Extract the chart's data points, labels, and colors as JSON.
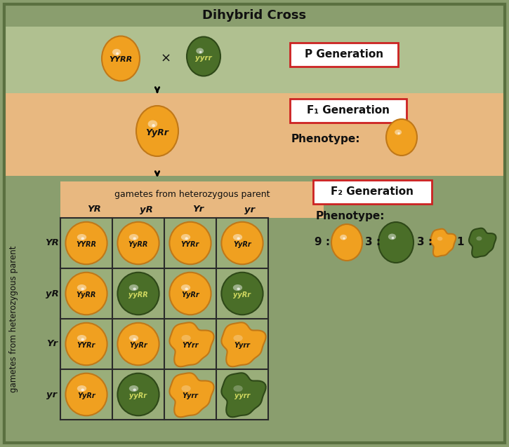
{
  "title": "Dihybrid Cross",
  "title_bg": "#8a9e6e",
  "title_border": "#5a7040",
  "p_gen_bg": "#b0c090",
  "f1_gen_bg": "#e8b880",
  "lower_bg": "#8a9e6e",
  "grid_cell_bg": "#9aae7a",
  "gametes_header_bg": "#e8b880",
  "p_generation_label": "P Generation",
  "f1_generation_label": "F₁ Generation",
  "f2_generation_label": "F₂ Generation",
  "phenotype_label": "Phenotype:",
  "gametes_top_label": "gametes from heterozygous parent",
  "gametes_left_label": "gametes from heterozygous parent",
  "col_headers": [
    "YR",
    "yR",
    "Yr",
    "yr"
  ],
  "row_headers": [
    "YR",
    "yR",
    "Yr",
    "yr"
  ],
  "grid_labels": [
    [
      "YYRR",
      "YyRR",
      "YYRr",
      "YyRr"
    ],
    [
      "YyRR",
      "yyRR",
      "YyRr",
      "yyRr"
    ],
    [
      "YYRr",
      "YyRr",
      "YYrr",
      "Yyrr"
    ],
    [
      "YyRr",
      "yyRr",
      "Yyrr",
      "yyrr"
    ]
  ],
  "grid_colors": [
    [
      "orange",
      "orange",
      "orange",
      "orange"
    ],
    [
      "orange",
      "dark_green",
      "orange",
      "dark_green"
    ],
    [
      "orange",
      "orange",
      "wrinkled_orange",
      "wrinkled_orange"
    ],
    [
      "orange",
      "dark_green",
      "wrinkled_orange",
      "dark_green_wrinkled"
    ]
  ]
}
